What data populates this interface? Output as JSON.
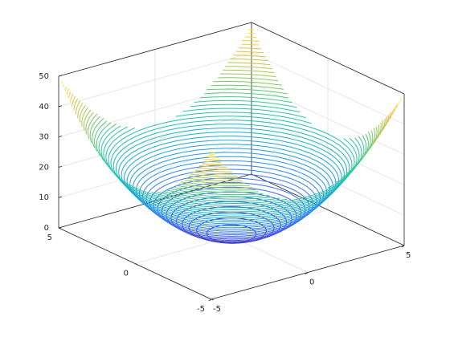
{
  "chart_data": {
    "type": "contour3",
    "xlim": [
      -5,
      5
    ],
    "ylim": [
      -5,
      5
    ],
    "zlim": [
      0,
      50
    ],
    "xticks": [
      -5,
      0,
      5
    ],
    "yticks": [
      -5,
      0,
      5
    ],
    "zticks": [
      0,
      10,
      20,
      30,
      40,
      50
    ],
    "grid": true,
    "colormap": [
      "#3e26a8",
      "#465ae8",
      "#2891eb",
      "#14b4c8",
      "#32c896",
      "#96c850",
      "#f0be3c",
      "#f9fb14"
    ],
    "levels": [
      1,
      2,
      3,
      4,
      5,
      6,
      7,
      8,
      9,
      10,
      11,
      12,
      13,
      14,
      15,
      16,
      17,
      18,
      19,
      20,
      21,
      22,
      23,
      24,
      25,
      26,
      27,
      28,
      29,
      30,
      31,
      32,
      33,
      34,
      35,
      36,
      37,
      38,
      39,
      40,
      41,
      42,
      43,
      44,
      45,
      46,
      47,
      48,
      49
    ]
  }
}
